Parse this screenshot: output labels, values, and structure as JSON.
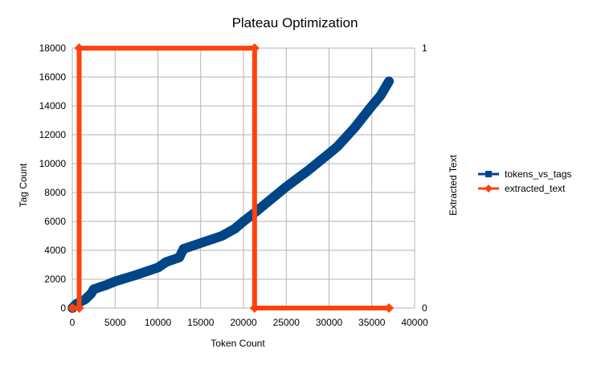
{
  "chart_data": {
    "type": "line",
    "title": "Plateau Optimization",
    "xlabel": "Token Count",
    "ylabel": "Tag Count",
    "y2label": "Extracted Text",
    "xlim": [
      0,
      40000
    ],
    "ylim": [
      0,
      18000
    ],
    "y2lim": [
      0,
      1
    ],
    "x_ticks": [
      "0",
      "5000",
      "10000",
      "15000",
      "20000",
      "25000",
      "30000",
      "35000",
      "40000"
    ],
    "y_ticks": [
      "0",
      "2000",
      "4000",
      "6000",
      "8000",
      "10000",
      "12000",
      "14000",
      "16000",
      "18000"
    ],
    "y2_ticks": [
      "0",
      "1"
    ],
    "grid": true,
    "legend_position": "right",
    "series": [
      {
        "name": "tokens_vs_tags",
        "axis": "left",
        "marker": "square",
        "color": "#004586",
        "points": [
          [
            0,
            0
          ],
          [
            500,
            300
          ],
          [
            1500,
            600
          ],
          [
            2200,
            1000
          ],
          [
            2500,
            1300
          ],
          [
            4000,
            1600
          ],
          [
            5000,
            1850
          ],
          [
            7500,
            2300
          ],
          [
            10000,
            2800
          ],
          [
            11000,
            3200
          ],
          [
            12500,
            3500
          ],
          [
            13000,
            4100
          ],
          [
            15000,
            4500
          ],
          [
            17500,
            5000
          ],
          [
            19000,
            5500
          ],
          [
            20000,
            6000
          ],
          [
            21300,
            6600
          ],
          [
            25000,
            8400
          ],
          [
            27500,
            9500
          ],
          [
            30000,
            10700
          ],
          [
            31000,
            11200
          ],
          [
            33000,
            12500
          ],
          [
            35000,
            14000
          ],
          [
            36000,
            14700
          ],
          [
            37000,
            15700
          ]
        ]
      },
      {
        "name": "extracted_text",
        "axis": "right",
        "marker": "diamond",
        "color": "#ff420e",
        "points": [
          [
            0,
            0
          ],
          [
            800,
            0
          ],
          [
            800,
            1
          ],
          [
            21300,
            1
          ],
          [
            21300,
            0
          ],
          [
            37000,
            0
          ]
        ]
      }
    ]
  }
}
